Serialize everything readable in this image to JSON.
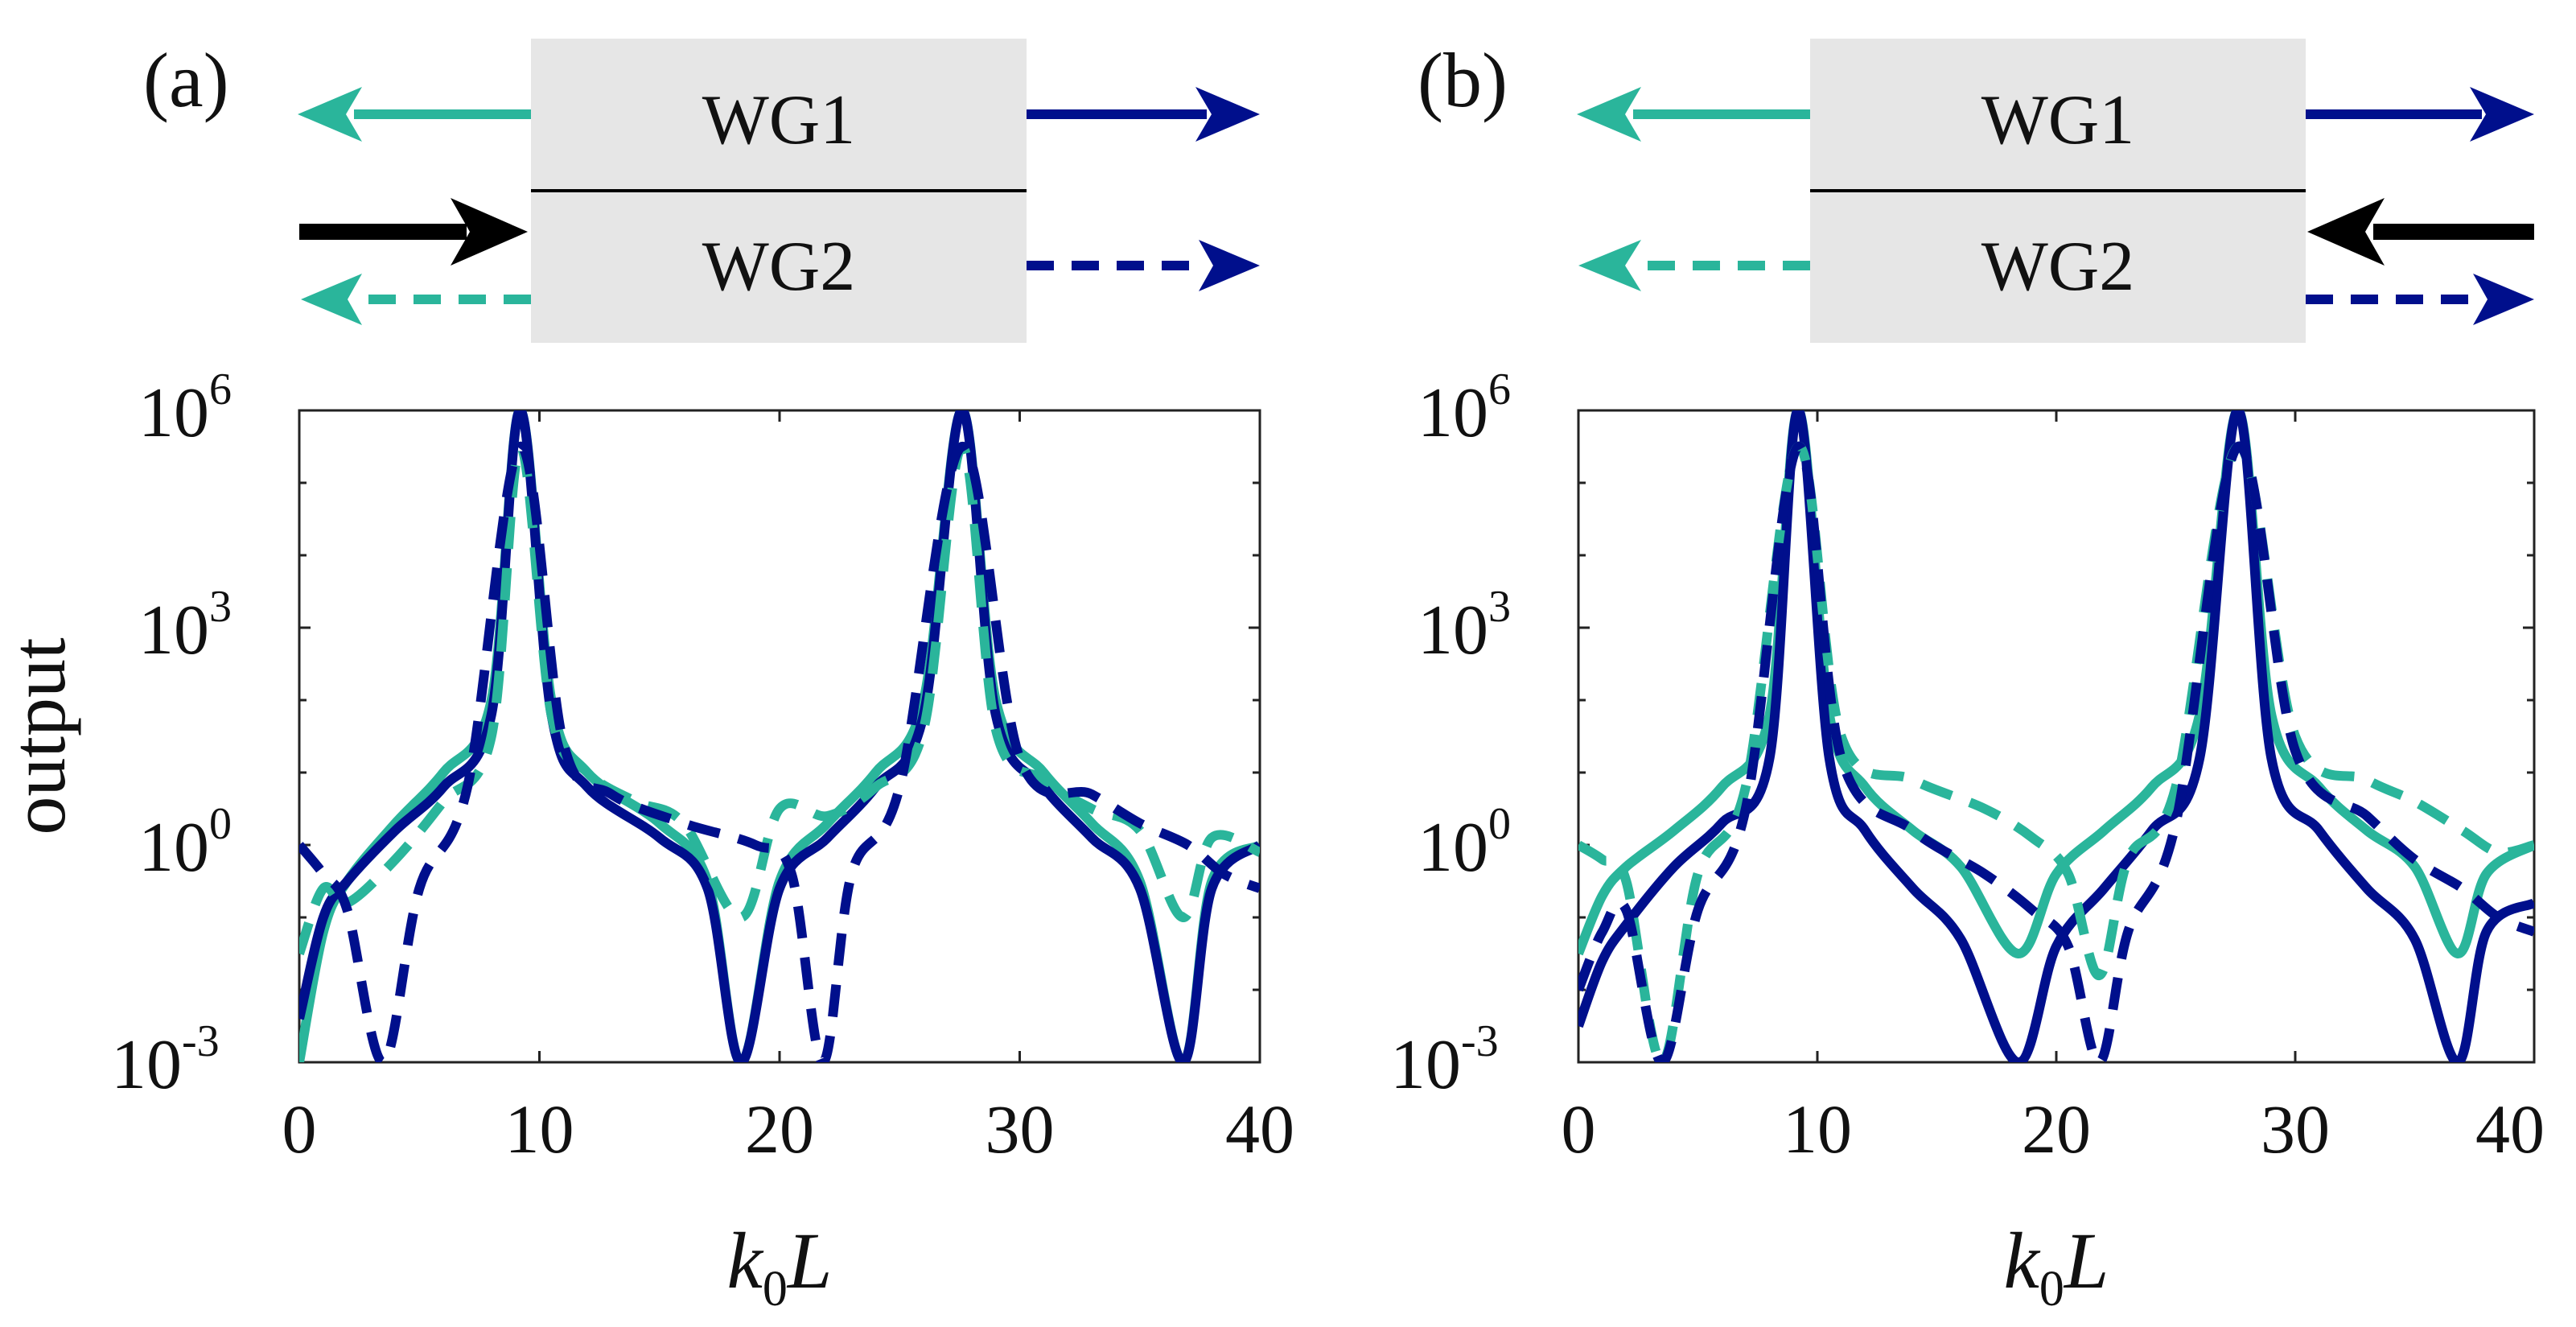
{
  "figure": {
    "colors": {
      "teal": "#2ab59b",
      "navy": "#000f8c",
      "black": "#000000",
      "box_fill": "#e6e6e6",
      "axis": "#222222"
    },
    "panels": [
      {
        "label": "(a)",
        "diagram": {
          "top_label": "WG1",
          "bottom_label": "WG2",
          "input_side": "left"
        },
        "ylabel": "output",
        "xlabel": "k0L",
        "xlabel_main": "k",
        "xlabel_sub": "0",
        "xlabel_tail": "L",
        "xticks": [
          "0",
          "10",
          "20",
          "30",
          "40"
        ],
        "yticks": [
          {
            "base": "10",
            "exp": "-3"
          },
          {
            "base": "10",
            "exp": "0"
          },
          {
            "base": "10",
            "exp": "3"
          },
          {
            "base": "10",
            "exp": "6"
          }
        ]
      },
      {
        "label": "(b)",
        "diagram": {
          "top_label": "WG1",
          "bottom_label": "WG2",
          "input_side": "right"
        },
        "ylabel": "",
        "xlabel": "k0L",
        "xlabel_main": "k",
        "xlabel_sub": "0",
        "xlabel_tail": "L",
        "xticks": [
          "0",
          "10",
          "20",
          "30",
          "40"
        ],
        "yticks": [
          {
            "base": "10",
            "exp": "-3"
          },
          {
            "base": "10",
            "exp": "0"
          },
          {
            "base": "10",
            "exp": "3"
          },
          {
            "base": "10",
            "exp": "6"
          }
        ]
      }
    ]
  },
  "chart_data": [
    {
      "type": "line",
      "title": "(a)",
      "xlabel": "k0L",
      "ylabel": "output",
      "xlim": [
        0,
        40
      ],
      "ylim_log10": [
        -3,
        6
      ],
      "yscale": "log",
      "series": [
        {
          "name": "WG1 backward output (teal solid)",
          "color": "#2ab59b",
          "style": "solid",
          "x": [
            0,
            1,
            2,
            4,
            6,
            8,
            9.2,
            10.5,
            12,
            15,
            17,
            18.4,
            20,
            22,
            24,
            26,
            27.6,
            29,
            31,
            33,
            35,
            36.8,
            38,
            40
          ],
          "y_log10": [
            -3,
            -1.2,
            -0.5,
            0.3,
            1,
            2,
            6,
            2,
            1,
            0.3,
            -0.5,
            -3,
            -0.5,
            0.3,
            1,
            2,
            6,
            2,
            1,
            0.3,
            -0.5,
            -3,
            -0.5,
            0
          ]
        },
        {
          "name": "WG1 forward output (navy solid)",
          "color": "#000f8c",
          "style": "solid",
          "x": [
            0,
            1,
            2,
            4,
            6,
            8,
            9.2,
            10.5,
            12,
            15,
            17,
            18.4,
            20,
            22,
            24,
            26,
            27.6,
            29,
            31,
            33,
            35,
            36.8,
            38,
            40
          ],
          "y_log10": [
            -2.4,
            -1,
            -0.5,
            0.2,
            0.8,
            1.8,
            6,
            1.8,
            0.8,
            0.1,
            -0.6,
            -3,
            -0.6,
            0.1,
            0.8,
            1.8,
            6,
            1.8,
            0.8,
            0.1,
            -0.6,
            -3,
            -0.6,
            0
          ]
        },
        {
          "name": "WG2 backward output (teal dashed)",
          "color": "#2ab59b",
          "style": "dashed",
          "x": [
            0,
            1,
            2,
            4,
            6,
            8,
            9.2,
            10.5,
            12,
            14,
            16,
            18.4,
            20,
            22,
            24,
            26,
            27.6,
            29,
            31,
            33,
            35,
            36.8,
            38,
            40
          ],
          "y_log10": [
            -1.5,
            -0.6,
            -0.8,
            -0.2,
            0.6,
            1.5,
            5.5,
            1.8,
            1,
            0.6,
            0.3,
            -1,
            0.5,
            0.4,
            0.8,
            1.6,
            5.5,
            1.6,
            0.9,
            0.5,
            0.2,
            -1,
            0.1,
            -0.1
          ]
        },
        {
          "name": "WG2 forward output (navy dashed)",
          "color": "#000f8c",
          "style": "dashed",
          "x": [
            0,
            1,
            2,
            3.5,
            5,
            7,
            9.2,
            11,
            13,
            16,
            19,
            20.5,
            21.8,
            23,
            25,
            27.6,
            30,
            33,
            35,
            37,
            38.5,
            40
          ],
          "y_log10": [
            0,
            -0.4,
            -0.9,
            -3,
            -0.6,
            0.8,
            5.5,
            1.4,
            0.7,
            0.3,
            0,
            -0.4,
            -3,
            -0.4,
            0.8,
            5.5,
            1.2,
            0.7,
            0.3,
            0,
            -0.4,
            -0.6
          ]
        }
      ]
    },
    {
      "type": "line",
      "title": "(b)",
      "xlabel": "k0L",
      "ylabel": "",
      "xlim": [
        0,
        40
      ],
      "ylim_log10": [
        -3,
        6
      ],
      "yscale": "log",
      "series": [
        {
          "name": "WG1 backward output (teal solid)",
          "color": "#2ab59b",
          "style": "solid",
          "x": [
            0,
            1,
            2,
            4,
            6,
            8,
            9.2,
            10.5,
            12,
            14,
            16,
            18.4,
            20,
            22,
            24,
            26,
            27.6,
            29,
            31,
            33,
            35,
            36.8,
            38,
            40
          ],
          "y_log10": [
            -1.5,
            -0.7,
            -0.3,
            0.2,
            0.8,
            1.8,
            6,
            1.8,
            0.8,
            0.2,
            -0.3,
            -1.5,
            -0.4,
            0.2,
            0.8,
            1.8,
            6,
            1.8,
            0.8,
            0.2,
            -0.3,
            -1.5,
            -0.4,
            0
          ]
        },
        {
          "name": "WG1 forward output (navy solid)",
          "color": "#000f8c",
          "style": "solid",
          "x": [
            0,
            1,
            2,
            4,
            6,
            8,
            9.2,
            10.5,
            12,
            14,
            16,
            18.4,
            20,
            22,
            24,
            26,
            27.6,
            29,
            31,
            33,
            35,
            36.8,
            38,
            40
          ],
          "y_log10": [
            -2.5,
            -1.6,
            -1.1,
            -0.3,
            0.3,
            1.2,
            6,
            1.2,
            0.2,
            -0.6,
            -1.3,
            -3,
            -1.4,
            -0.6,
            0.2,
            1.2,
            6,
            1.2,
            0.2,
            -0.6,
            -1.3,
            -3,
            -1.2,
            -0.8
          ]
        },
        {
          "name": "WG2 backward output (teal dashed)",
          "color": "#2ab59b",
          "style": "dashed",
          "x": [
            0,
            1,
            2,
            3.5,
            5,
            7,
            9.2,
            11,
            14,
            17,
            19,
            20.5,
            21.8,
            23,
            25,
            27.6,
            30,
            33,
            35,
            37,
            38.5,
            40
          ],
          "y_log10": [
            0,
            -0.2,
            -0.5,
            -3,
            -0.4,
            0.8,
            5.5,
            1.5,
            0.9,
            0.5,
            0.1,
            -0.4,
            -1.8,
            -0.2,
            0.8,
            5.5,
            1.5,
            0.9,
            0.6,
            0.2,
            -0.1,
            0
          ]
        },
        {
          "name": "WG2 forward output (navy dashed)",
          "color": "#000f8c",
          "style": "dashed",
          "x": [
            0,
            1,
            2,
            3.5,
            5,
            7,
            9.2,
            11,
            14,
            17,
            19,
            20.5,
            21.8,
            23,
            25,
            27.6,
            30,
            33,
            35,
            37,
            38.5,
            40
          ],
          "y_log10": [
            -2,
            -1.2,
            -0.9,
            -3,
            -0.9,
            0.5,
            5.5,
            1.2,
            0.2,
            -0.4,
            -0.9,
            -1.4,
            -3,
            -1.2,
            0.3,
            5.5,
            1.3,
            0.4,
            -0.2,
            -0.6,
            -1,
            -1.2
          ]
        }
      ]
    }
  ]
}
